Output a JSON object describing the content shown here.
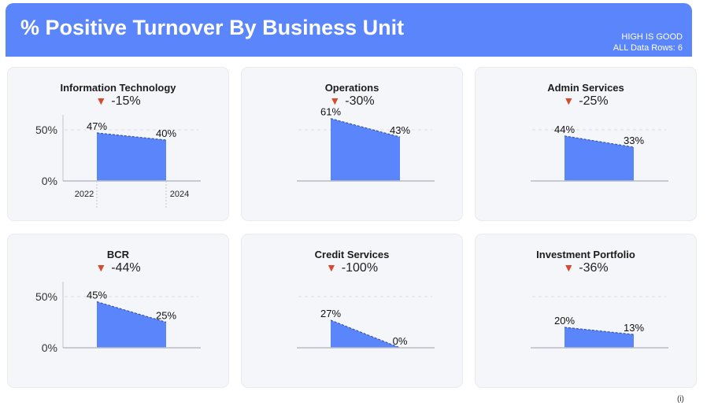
{
  "header": {
    "title": "% Positive Turnover By Business Unit",
    "note_high": "HIGH IS GOOD",
    "note_rows": "ALL Data Rows: 6",
    "color": "#5b86fb"
  },
  "info_label": "(i)",
  "colors": {
    "area": "#5b86fb",
    "arrow_down": "#d84a2c"
  },
  "chart_data": [
    {
      "type": "area",
      "title": "Information Technology",
      "delta": "-15%",
      "x": [
        "2022",
        "2024"
      ],
      "values": [
        47,
        40
      ],
      "value_labels": [
        "47%",
        "40%"
      ],
      "yticks": [
        "50%",
        "0%"
      ],
      "xticks": [
        "2022",
        "2024"
      ],
      "ylim": [
        0,
        70
      ]
    },
    {
      "type": "area",
      "title": "Operations",
      "delta": "-30%",
      "x": [
        "2022",
        "2024"
      ],
      "values": [
        61,
        43
      ],
      "value_labels": [
        "61%",
        "43%"
      ],
      "yticks": [],
      "xticks": [],
      "ylim": [
        0,
        70
      ]
    },
    {
      "type": "area",
      "title": "Admin Services",
      "delta": "-25%",
      "x": [
        "2022",
        "2024"
      ],
      "values": [
        44,
        33
      ],
      "value_labels": [
        "44%",
        "33%"
      ],
      "yticks": [],
      "xticks": [],
      "ylim": [
        0,
        70
      ]
    },
    {
      "type": "area",
      "title": "BCR",
      "delta": "-44%",
      "x": [
        "2022",
        "2024"
      ],
      "values": [
        45,
        25
      ],
      "value_labels": [
        "45%",
        "25%"
      ],
      "yticks": [
        "50%",
        "0%"
      ],
      "xticks": [],
      "ylim": [
        0,
        70
      ]
    },
    {
      "type": "area",
      "title": "Credit Services",
      "delta": "-100%",
      "x": [
        "2022",
        "2024"
      ],
      "values": [
        27,
        0
      ],
      "value_labels": [
        "27%",
        "0%"
      ],
      "yticks": [],
      "xticks": [],
      "ylim": [
        0,
        70
      ]
    },
    {
      "type": "area",
      "title": "Investment Portfolio",
      "delta": "-36%",
      "x": [
        "2022",
        "2024"
      ],
      "values": [
        20,
        13
      ],
      "value_labels": [
        "20%",
        "13%"
      ],
      "yticks": [],
      "xticks": [],
      "ylim": [
        0,
        70
      ]
    }
  ]
}
